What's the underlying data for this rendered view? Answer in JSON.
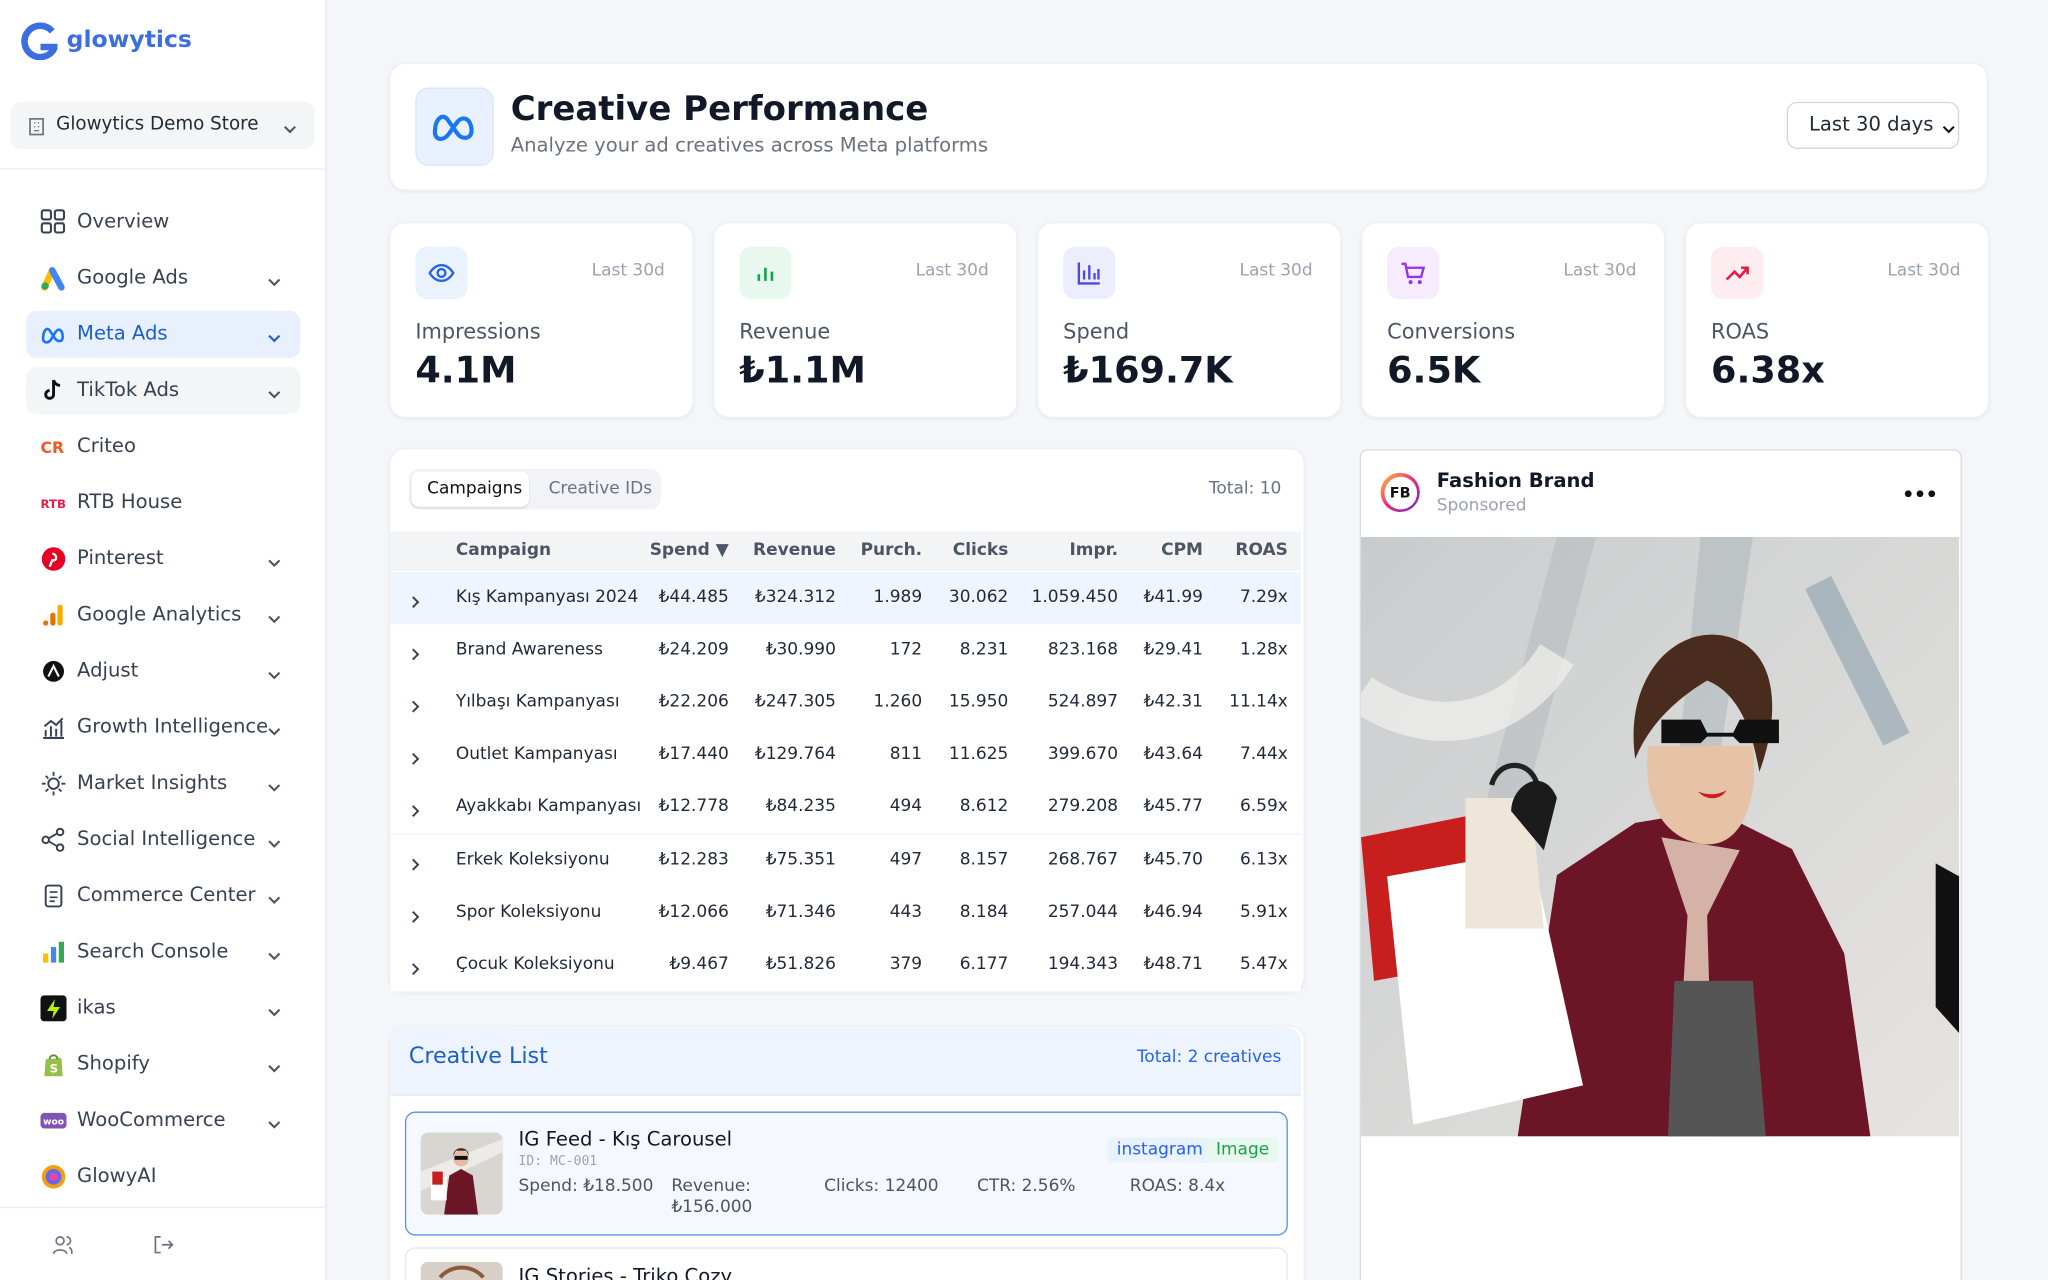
{
  "sidebar": {
    "brand": "glowytics",
    "store": "Glowytics Demo Store",
    "active": 2,
    "nav": [
      {
        "label": "Overview",
        "expandable": false
      },
      {
        "label": "Google Ads",
        "expandable": true
      },
      {
        "label": "Meta Ads",
        "expandable": true
      },
      {
        "label": "TikTok Ads",
        "expandable": true
      },
      {
        "label": "Criteo",
        "expandable": false
      },
      {
        "label": "RTB House",
        "expandable": false
      },
      {
        "label": "Pinterest",
        "expandable": true
      },
      {
        "label": "Google Analytics",
        "expandable": true
      },
      {
        "label": "Adjust",
        "expandable": true
      },
      {
        "label": "Growth Intelligence",
        "expandable": true
      },
      {
        "label": "Market Insights",
        "expandable": true
      },
      {
        "label": "Social Intelligence",
        "expandable": true
      },
      {
        "label": "Commerce Center",
        "expandable": true
      },
      {
        "label": "Search Console",
        "expandable": true
      },
      {
        "label": "ikas",
        "expandable": true
      },
      {
        "label": "Shopify",
        "expandable": true
      },
      {
        "label": "WooCommerce",
        "expandable": true
      },
      {
        "label": "GlowyAI",
        "expandable": false
      }
    ]
  },
  "header": {
    "title": "Creative Performance",
    "subtitle": "Analyze your ad creatives across Meta platforms",
    "range": "Last 30 days"
  },
  "kpis": [
    {
      "label": "Impressions",
      "value": "4.1M",
      "period": "Last 30d"
    },
    {
      "label": "Revenue",
      "value": "₺1.1M",
      "period": "Last 30d"
    },
    {
      "label": "Spend",
      "value": "₺169.7K",
      "period": "Last 30d"
    },
    {
      "label": "Conversions",
      "value": "6.5K",
      "period": "Last 30d"
    },
    {
      "label": "ROAS",
      "value": "6.38x",
      "period": "Last 30d"
    }
  ],
  "table": {
    "tabs": [
      "Campaigns",
      "Creative IDs"
    ],
    "total": "Total: 10",
    "columns": [
      "Campaign",
      "Spend ▼",
      "Revenue",
      "Purch.",
      "Clicks",
      "Impr.",
      "CPM",
      "ROAS"
    ],
    "rows": [
      [
        "Kış Kampanyası 2024",
        "₺44.485",
        "₺324.312",
        "1.989",
        "30.062",
        "1.059.450",
        "₺41.99",
        "7.29x"
      ],
      [
        "Brand Awareness",
        "₺24.209",
        "₺30.990",
        "172",
        "8.231",
        "823.168",
        "₺29.41",
        "1.28x"
      ],
      [
        "Yılbaşı Kampanyası",
        "₺22.206",
        "₺247.305",
        "1.260",
        "15.950",
        "524.897",
        "₺42.31",
        "11.14x"
      ],
      [
        "Outlet Kampanyası",
        "₺17.440",
        "₺129.764",
        "811",
        "11.625",
        "399.670",
        "₺43.64",
        "7.44x"
      ],
      [
        "Ayakkabı Kampanyası",
        "₺12.778",
        "₺84.235",
        "494",
        "8.612",
        "279.208",
        "₺45.77",
        "6.59x"
      ],
      [
        "Erkek Koleksiyonu",
        "₺12.283",
        "₺75.351",
        "497",
        "8.157",
        "268.767",
        "₺45.70",
        "6.13x"
      ],
      [
        "Spor Koleksiyonu",
        "₺12.066",
        "₺71.346",
        "443",
        "8.184",
        "257.044",
        "₺46.94",
        "5.91x"
      ],
      [
        "Çocuk Koleksiyonu",
        "₺9.467",
        "₺51.826",
        "379",
        "6.177",
        "194.343",
        "₺48.71",
        "5.47x"
      ]
    ]
  },
  "creatives": {
    "title": "Creative List",
    "total": "Total: 2 creatives",
    "items": [
      {
        "name": "IG Feed - Kış Carousel",
        "id": "ID: MC-001",
        "platform": "instagram",
        "format": "Image",
        "metrics": [
          "Spend: ₺18.500",
          "Revenue: ₺156.000",
          "Clicks: 12400",
          "CTR: 2.56%",
          "ROAS: 8.4x"
        ]
      },
      {
        "name": "IG Stories - Triko Cozy"
      }
    ]
  },
  "preview": {
    "brand": "Fashion Brand",
    "initials": "FB",
    "label": "Sponsored"
  }
}
